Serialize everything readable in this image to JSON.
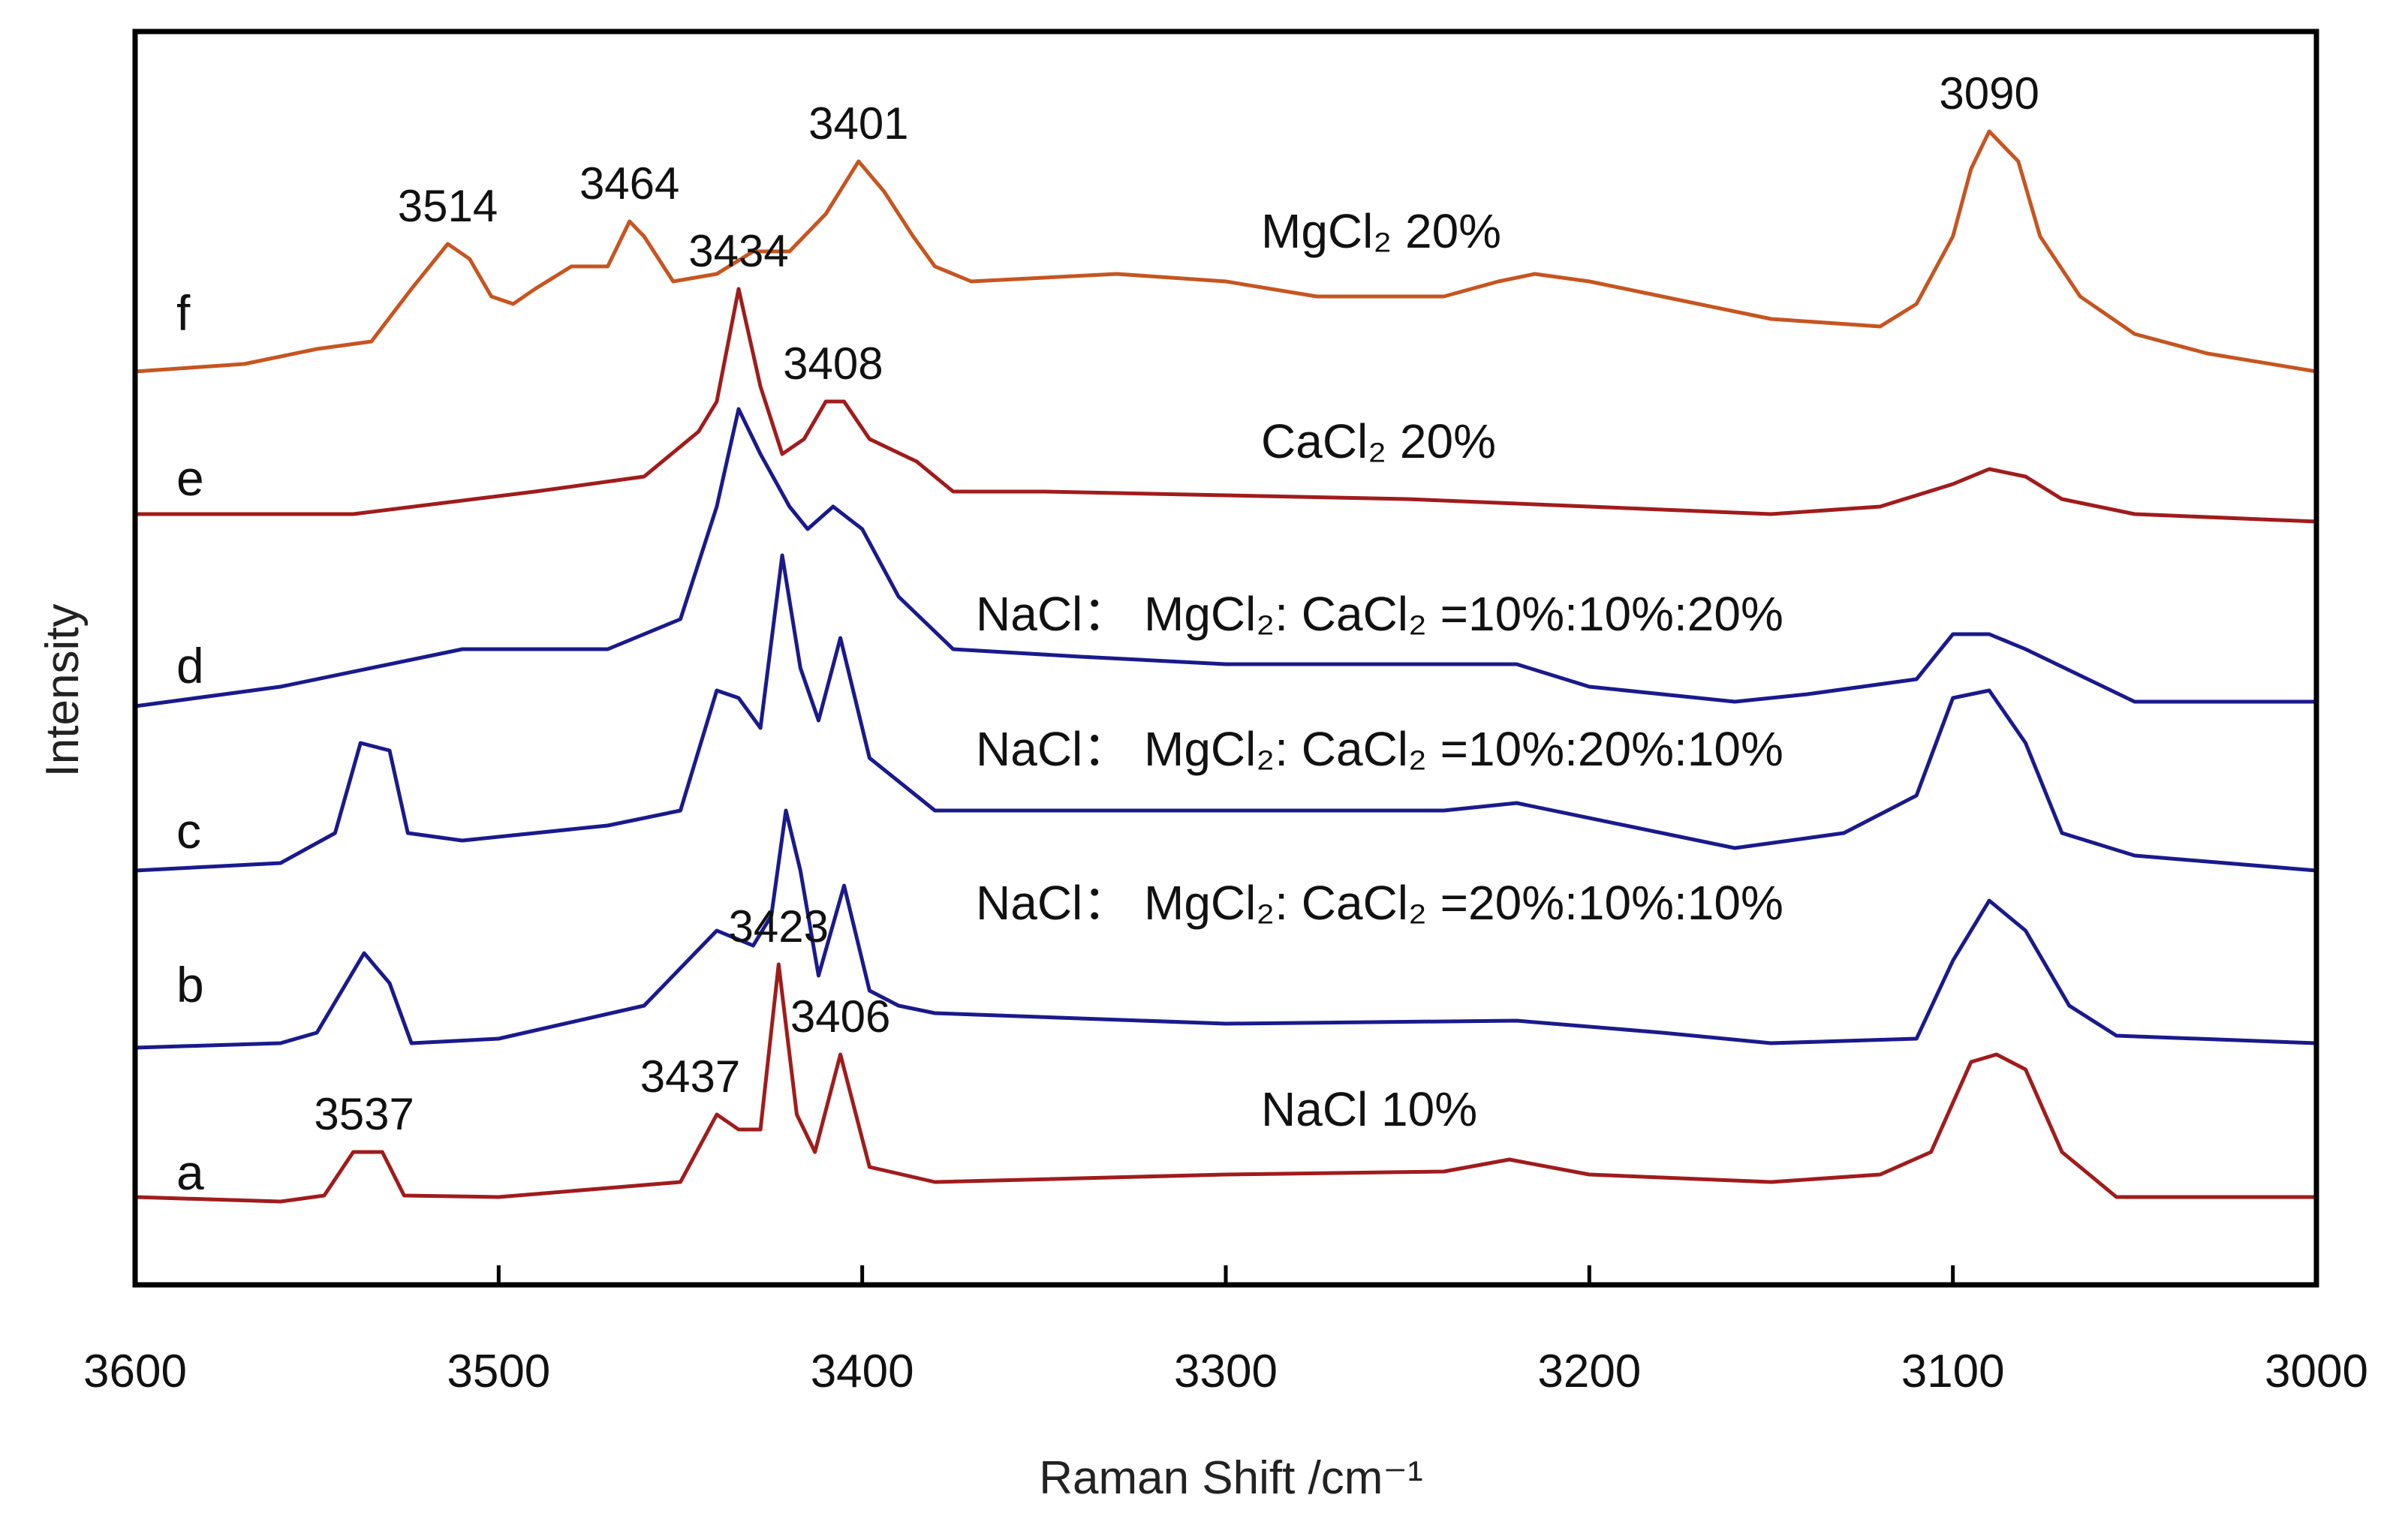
{
  "chart_data": {
    "type": "line",
    "xlabel": "Raman Shift /cm⁻¹",
    "ylabel": "Intensity",
    "xlim": [
      3600,
      3000
    ],
    "x_reversed": true,
    "x_ticks": [
      3600,
      3500,
      3400,
      3300,
      3200,
      3100,
      3000
    ],
    "grid": false,
    "series": [
      {
        "letter": "a",
        "name": "NaCl 10%",
        "color": "#a01c1c",
        "points": [
          [
            3600,
            0.05
          ],
          [
            3560,
            0.02
          ],
          [
            3548,
            0.06
          ],
          [
            3540,
            0.35
          ],
          [
            3532,
            0.35
          ],
          [
            3526,
            0.06
          ],
          [
            3500,
            0.05
          ],
          [
            3450,
            0.15
          ],
          [
            3440,
            0.6
          ],
          [
            3434,
            0.5
          ],
          [
            3428,
            0.5
          ],
          [
            3423,
            1.6
          ],
          [
            3418,
            0.6
          ],
          [
            3413,
            0.35
          ],
          [
            3406,
            1.0
          ],
          [
            3398,
            0.25
          ],
          [
            3380,
            0.15
          ],
          [
            3300,
            0.2
          ],
          [
            3240,
            0.22
          ],
          [
            3222,
            0.3
          ],
          [
            3200,
            0.2
          ],
          [
            3150,
            0.15
          ],
          [
            3120,
            0.2
          ],
          [
            3106,
            0.35
          ],
          [
            3095,
            0.95
          ],
          [
            3088,
            1.0
          ],
          [
            3080,
            0.9
          ],
          [
            3070,
            0.35
          ],
          [
            3055,
            0.05
          ],
          [
            3000,
            0.05
          ]
        ]
      },
      {
        "letter": "b",
        "name": "NaCl： MgCl₂: CaCl₂ =20%:10%:10%",
        "color": "#1a1a8c",
        "points": [
          [
            3600,
            0.02
          ],
          [
            3560,
            0.05
          ],
          [
            3550,
            0.12
          ],
          [
            3537,
            0.65
          ],
          [
            3530,
            0.45
          ],
          [
            3524,
            0.05
          ],
          [
            3500,
            0.08
          ],
          [
            3460,
            0.3
          ],
          [
            3440,
            0.8
          ],
          [
            3430,
            0.7
          ],
          [
            3425,
            0.9
          ],
          [
            3421,
            1.6
          ],
          [
            3417,
            1.2
          ],
          [
            3412,
            0.5
          ],
          [
            3405,
            1.1
          ],
          [
            3398,
            0.4
          ],
          [
            3390,
            0.3
          ],
          [
            3380,
            0.25
          ],
          [
            3300,
            0.18
          ],
          [
            3220,
            0.2
          ],
          [
            3180,
            0.12
          ],
          [
            3150,
            0.05
          ],
          [
            3110,
            0.08
          ],
          [
            3100,
            0.6
          ],
          [
            3090,
            1.0
          ],
          [
            3080,
            0.8
          ],
          [
            3068,
            0.3
          ],
          [
            3055,
            0.1
          ],
          [
            3000,
            0.05
          ]
        ]
      },
      {
        "letter": "c",
        "name": "NaCl： MgCl₂: CaCl₂ =10%:20%:10%",
        "color": "#1a1a8c",
        "points": [
          [
            3600,
            0.05
          ],
          [
            3560,
            0.1
          ],
          [
            3545,
            0.3
          ],
          [
            3538,
            0.9
          ],
          [
            3530,
            0.85
          ],
          [
            3525,
            0.3
          ],
          [
            3510,
            0.25
          ],
          [
            3470,
            0.35
          ],
          [
            3450,
            0.45
          ],
          [
            3440,
            1.25
          ],
          [
            3434,
            1.2
          ],
          [
            3428,
            1.0
          ],
          [
            3422,
            2.15
          ],
          [
            3417,
            1.4
          ],
          [
            3412,
            1.05
          ],
          [
            3406,
            1.6
          ],
          [
            3398,
            0.8
          ],
          [
            3380,
            0.45
          ],
          [
            3350,
            0.45
          ],
          [
            3300,
            0.45
          ],
          [
            3240,
            0.45
          ],
          [
            3220,
            0.5
          ],
          [
            3170,
            0.25
          ],
          [
            3160,
            0.2
          ],
          [
            3130,
            0.3
          ],
          [
            3110,
            0.55
          ],
          [
            3100,
            1.2
          ],
          [
            3090,
            1.25
          ],
          [
            3080,
            0.9
          ],
          [
            3070,
            0.3
          ],
          [
            3050,
            0.15
          ],
          [
            3000,
            0.05
          ]
        ]
      },
      {
        "letter": "d",
        "name": "NaCl： MgCl₂: CaCl₂ =10%:10%:20%",
        "color": "#1a1a8c",
        "points": [
          [
            3600,
            0.02
          ],
          [
            3560,
            0.15
          ],
          [
            3510,
            0.4
          ],
          [
            3470,
            0.4
          ],
          [
            3450,
            0.6
          ],
          [
            3440,
            1.35
          ],
          [
            3434,
            2.0
          ],
          [
            3428,
            1.7
          ],
          [
            3420,
            1.35
          ],
          [
            3415,
            1.2
          ],
          [
            3408,
            1.35
          ],
          [
            3400,
            1.2
          ],
          [
            3390,
            0.75
          ],
          [
            3375,
            0.4
          ],
          [
            3340,
            0.35
          ],
          [
            3300,
            0.3
          ],
          [
            3250,
            0.3
          ],
          [
            3220,
            0.3
          ],
          [
            3200,
            0.15
          ],
          [
            3160,
            0.05
          ],
          [
            3140,
            0.1
          ],
          [
            3110,
            0.2
          ],
          [
            3100,
            0.5
          ],
          [
            3090,
            0.5
          ],
          [
            3080,
            0.4
          ],
          [
            3050,
            0.05
          ],
          [
            3000,
            0.05
          ]
        ]
      },
      {
        "letter": "e",
        "name": "CaCl₂ 20%",
        "color": "#a01c1c",
        "points": [
          [
            3600,
            0.05
          ],
          [
            3540,
            0.05
          ],
          [
            3490,
            0.2
          ],
          [
            3460,
            0.3
          ],
          [
            3445,
            0.6
          ],
          [
            3440,
            0.8
          ],
          [
            3434,
            1.55
          ],
          [
            3428,
            0.9
          ],
          [
            3422,
            0.45
          ],
          [
            3416,
            0.55
          ],
          [
            3410,
            0.8
          ],
          [
            3405,
            0.8
          ],
          [
            3398,
            0.55
          ],
          [
            3385,
            0.4
          ],
          [
            3375,
            0.2
          ],
          [
            3350,
            0.2
          ],
          [
            3250,
            0.15
          ],
          [
            3200,
            0.1
          ],
          [
            3150,
            0.05
          ],
          [
            3120,
            0.1
          ],
          [
            3100,
            0.25
          ],
          [
            3090,
            0.35
          ],
          [
            3080,
            0.3
          ],
          [
            3070,
            0.15
          ],
          [
            3050,
            0.05
          ],
          [
            3000,
            0.0
          ]
        ]
      },
      {
        "letter": "f",
        "name": "MgCl₂ 20%",
        "color": "#c65520",
        "points": [
          [
            3600,
            0.0
          ],
          [
            3570,
            0.05
          ],
          [
            3550,
            0.15
          ],
          [
            3535,
            0.2
          ],
          [
            3524,
            0.55
          ],
          [
            3514,
            0.85
          ],
          [
            3508,
            0.75
          ],
          [
            3502,
            0.5
          ],
          [
            3496,
            0.45
          ],
          [
            3490,
            0.55
          ],
          [
            3480,
            0.7
          ],
          [
            3470,
            0.7
          ],
          [
            3464,
            1.0
          ],
          [
            3460,
            0.9
          ],
          [
            3452,
            0.6
          ],
          [
            3440,
            0.65
          ],
          [
            3430,
            0.8
          ],
          [
            3420,
            0.8
          ],
          [
            3410,
            1.05
          ],
          [
            3401,
            1.4
          ],
          [
            3394,
            1.2
          ],
          [
            3386,
            0.9
          ],
          [
            3380,
            0.7
          ],
          [
            3370,
            0.6
          ],
          [
            3330,
            0.65
          ],
          [
            3300,
            0.6
          ],
          [
            3275,
            0.5
          ],
          [
            3240,
            0.5
          ],
          [
            3225,
            0.6
          ],
          [
            3215,
            0.65
          ],
          [
            3200,
            0.6
          ],
          [
            3180,
            0.5
          ],
          [
            3150,
            0.35
          ],
          [
            3120,
            0.3
          ],
          [
            3110,
            0.45
          ],
          [
            3100,
            0.9
          ],
          [
            3095,
            1.35
          ],
          [
            3090,
            1.6
          ],
          [
            3082,
            1.4
          ],
          [
            3076,
            0.9
          ],
          [
            3065,
            0.5
          ],
          [
            3050,
            0.25
          ],
          [
            3030,
            0.12
          ],
          [
            3000,
            0.0
          ]
        ]
      }
    ],
    "annotations": [
      {
        "text": "3537",
        "x": 3537,
        "series": "a"
      },
      {
        "text": "3437",
        "x": 3437,
        "series": "a"
      },
      {
        "text": "3423",
        "x": 3423,
        "series": "a"
      },
      {
        "text": "3406",
        "x": 3406,
        "series": "a"
      },
      {
        "text": "3434",
        "x": 3434,
        "series": "e"
      },
      {
        "text": "3408",
        "x": 3408,
        "series": "e"
      },
      {
        "text": "3514",
        "x": 3514,
        "series": "f"
      },
      {
        "text": "3464",
        "x": 3464,
        "series": "f"
      },
      {
        "text": "3401",
        "x": 3401,
        "series": "f"
      },
      {
        "text": "3090",
        "x": 3090,
        "series": "f"
      }
    ]
  }
}
